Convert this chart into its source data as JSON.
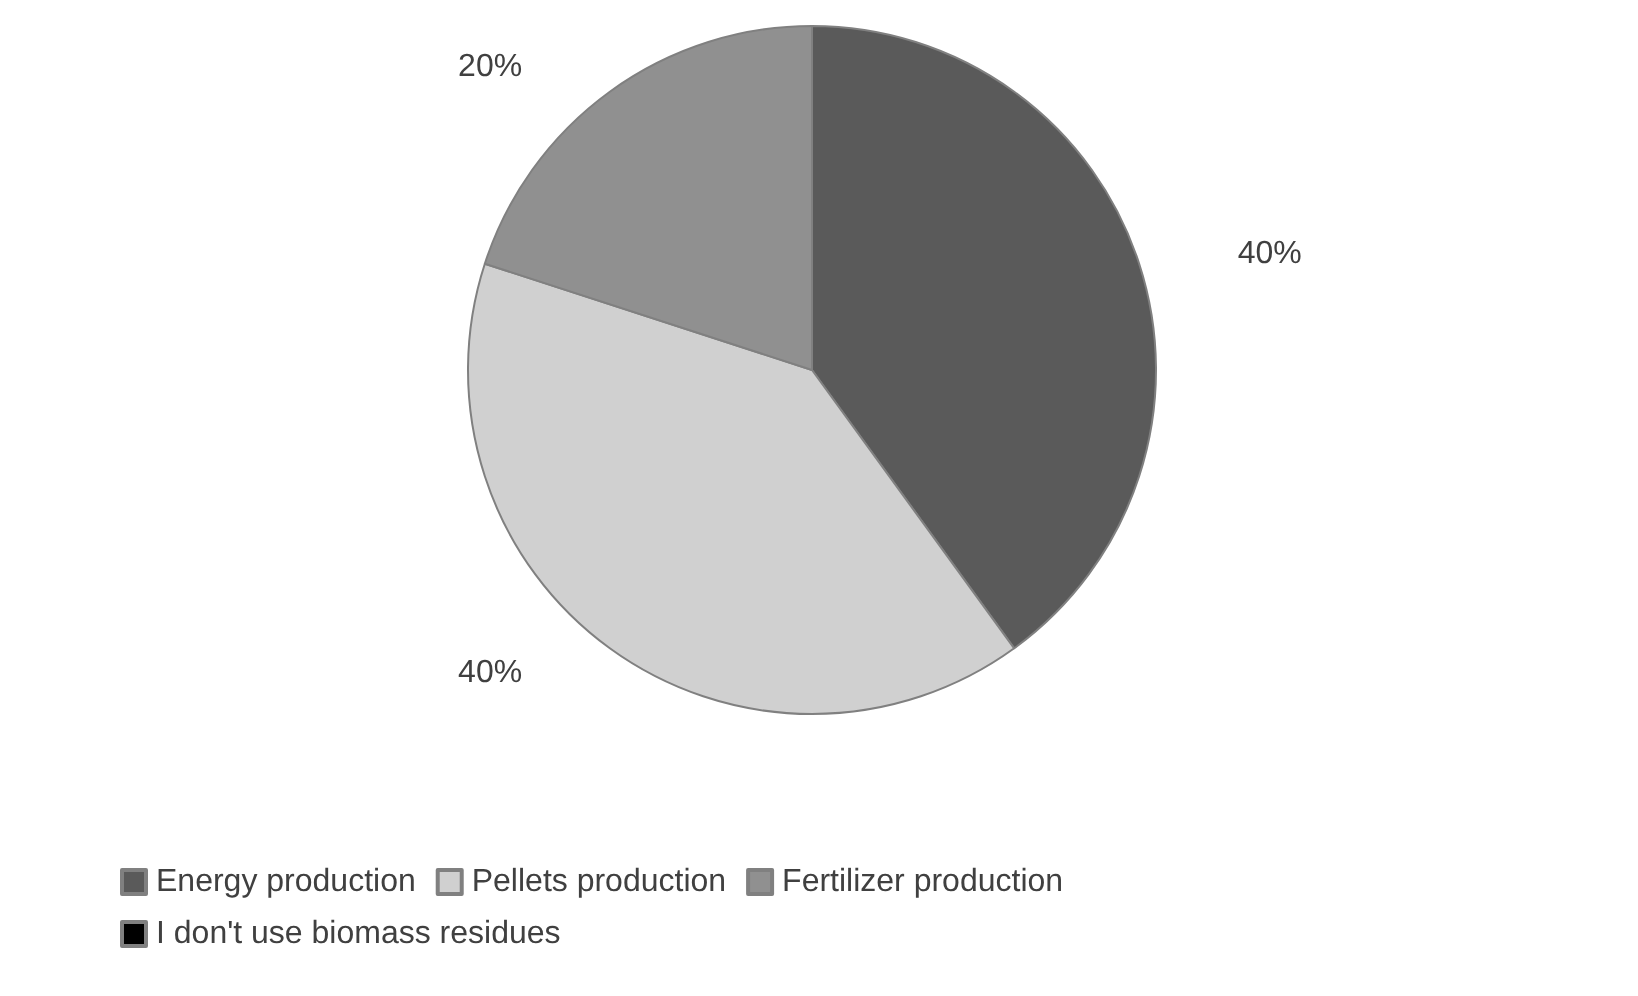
{
  "chart_data": {
    "type": "pie",
    "categories": [
      "Energy production",
      "Pellets production",
      "Fertilizer production",
      "I don't use biomass residues"
    ],
    "values": [
      40,
      40,
      20,
      0
    ],
    "value_labels": [
      "40%",
      "40%",
      "20%",
      null
    ],
    "colors": [
      "#5a5a5a",
      "#d0d0d0",
      "#909090",
      "#000000"
    ],
    "legend": "bottom"
  }
}
